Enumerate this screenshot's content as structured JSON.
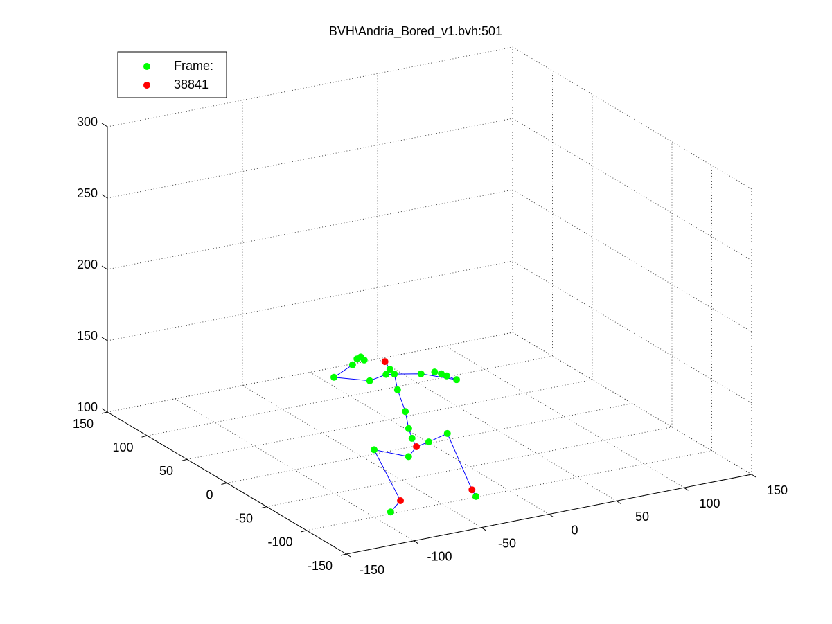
{
  "chart_data": {
    "type": "scatter3d",
    "title": "BVH\\Andria_Bored_v1.bvh:501",
    "xlim": [
      -150,
      150
    ],
    "xticks": [
      -150,
      -100,
      -50,
      0,
      50,
      100,
      150
    ],
    "ylim": [
      -150,
      150
    ],
    "yticks": [
      -150,
      -100,
      -50,
      0,
      50,
      100,
      150
    ],
    "zlim": [
      100,
      300
    ],
    "zticks": [
      100,
      150,
      200,
      250,
      300
    ],
    "grid": true,
    "legend": "upper left",
    "series": [
      {
        "type": "line",
        "color": "#0000ff",
        "x": [
          -86,
          -74,
          -77,
          -91,
          -84,
          -66,
          -21,
          -24,
          -24,
          null,
          -84,
          -92,
          -98,
          -104,
          -108,
          -95,
          -93,
          -102,
          null,
          -95,
          -100,
          -115,
          -125,
          -103,
          null,
          -95,
          -80,
          -59,
          -61
        ],
        "y": [
          -97,
          -89,
          -61,
          -128,
          -126,
          -111,
          -58,
          -94,
          -99,
          null,
          -126,
          -134,
          -140,
          -146,
          -143,
          -117,
          -108,
          -117,
          null,
          -117,
          -115,
          -120,
          -92,
          -78,
          null,
          -117,
          -125,
          -134,
          -125
        ],
        "z": [
          100,
          103,
          130,
          150,
          155,
          150,
          130,
          103,
          100,
          null,
          155,
          165,
          175,
          190,
          205,
          205,
          205,
          215,
          null,
          205,
          205,
          205,
          200,
          200,
          null,
          205,
          205,
          200,
          200
        ]
      },
      {
        "name": "Frame:",
        "type": "scatter",
        "color": "#00ff00",
        "x": [
          -86,
          -77,
          -91,
          -66,
          -21,
          -24,
          -92,
          -98,
          -104,
          -108,
          -93,
          -95,
          -100,
          -115,
          -125,
          -103,
          -95,
          -91,
          -92,
          -80,
          -59,
          -64,
          -62,
          -61
        ],
        "y": [
          -97,
          -61,
          -128,
          -111,
          -58,
          -99,
          -134,
          -140,
          -146,
          -143,
          -108,
          -117,
          -115,
          -120,
          -92,
          -78,
          -70,
          -68,
          -74,
          -125,
          -134,
          -115,
          -120,
          -125
        ],
        "z": [
          100,
          130,
          150,
          150,
          130,
          100,
          165,
          175,
          190,
          205,
          205,
          205,
          205,
          205,
          200,
          200,
          200,
          200,
          200,
          205,
          200,
          200,
          200,
          200
        ]
      },
      {
        "name": "38841",
        "type": "scatter",
        "color": "#ff0000",
        "x": [
          -74,
          -84,
          -24,
          -102
        ],
        "y": [
          -89,
          -126,
          -94,
          -117
        ],
        "z": [
          103,
          155,
          103,
          215
        ]
      }
    ]
  }
}
